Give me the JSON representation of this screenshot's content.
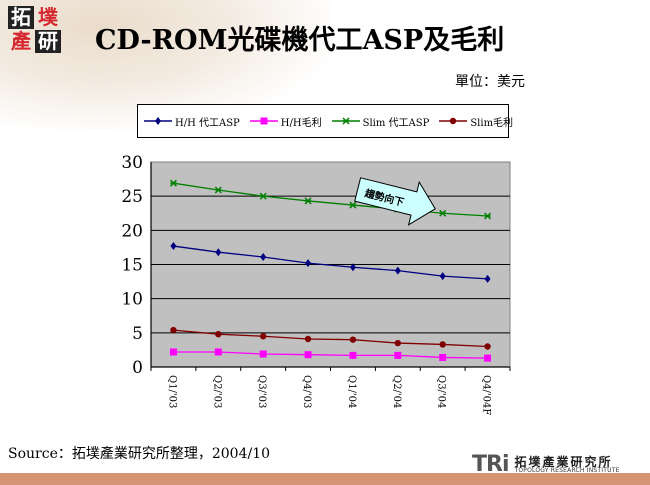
{
  "logo": {
    "chars": [
      "拓",
      "墣",
      "產",
      "研"
    ]
  },
  "header": {
    "title": "CD-ROM光碟機代工ASP及毛利",
    "unit": "單位：美元"
  },
  "legend": {
    "items": [
      {
        "label": "H/H 代工ASP",
        "color": "#000080",
        "marker": "diamond"
      },
      {
        "label": "H/H毛利",
        "color": "#ff00ff",
        "marker": "square"
      },
      {
        "label": "Slim 代工ASP",
        "color": "#008000",
        "marker": "star"
      },
      {
        "label": "Slim毛利",
        "color": "#800000",
        "marker": "circle"
      }
    ]
  },
  "annotation": {
    "text": "趨勢向下",
    "fill": "#ccffff"
  },
  "chart_data": {
    "type": "line",
    "title": "CD-ROM光碟機代工ASP及毛利",
    "unit": "單位：美元",
    "xlabel": "",
    "ylabel": "",
    "categories": [
      "Q1/'03",
      "Q2/'03",
      "Q3/'03",
      "Q4/'03",
      "Q1/'04",
      "Q2/'04",
      "Q3/'04",
      "Q4/'04F"
    ],
    "yticks": [
      0,
      5,
      10,
      15,
      20,
      25,
      30
    ],
    "ylim": [
      0,
      30
    ],
    "grid": true,
    "legend_position": "top",
    "plot_background": "#c0c0c0",
    "series": [
      {
        "name": "H/H 代工ASP",
        "color": "#000080",
        "values": [
          17.7,
          16.8,
          16.1,
          15.2,
          14.6,
          14.1,
          13.3,
          12.9
        ]
      },
      {
        "name": "H/H毛利",
        "color": "#ff00ff",
        "values": [
          2.2,
          2.2,
          1.9,
          1.8,
          1.7,
          1.7,
          1.4,
          1.3
        ]
      },
      {
        "name": "Slim 代工ASP",
        "color": "#008000",
        "values": [
          26.9,
          25.9,
          25.0,
          24.3,
          23.7,
          23.1,
          22.5,
          22.1
        ]
      },
      {
        "name": "Slim毛利",
        "color": "#800000",
        "values": [
          5.4,
          4.8,
          4.5,
          4.1,
          4.0,
          3.5,
          3.3,
          3.0
        ]
      }
    ],
    "annotations": [
      {
        "text": "趨勢向下",
        "type": "arrow",
        "direction": "down-right"
      }
    ]
  },
  "footer": {
    "source": "Source：拓墣產業研究所整理，2004/10",
    "brand_mark": "TRi",
    "brand_cn": "拓墣產業研究所",
    "brand_en": "TOPOLOGY RESEARCH INSTITUTE"
  }
}
